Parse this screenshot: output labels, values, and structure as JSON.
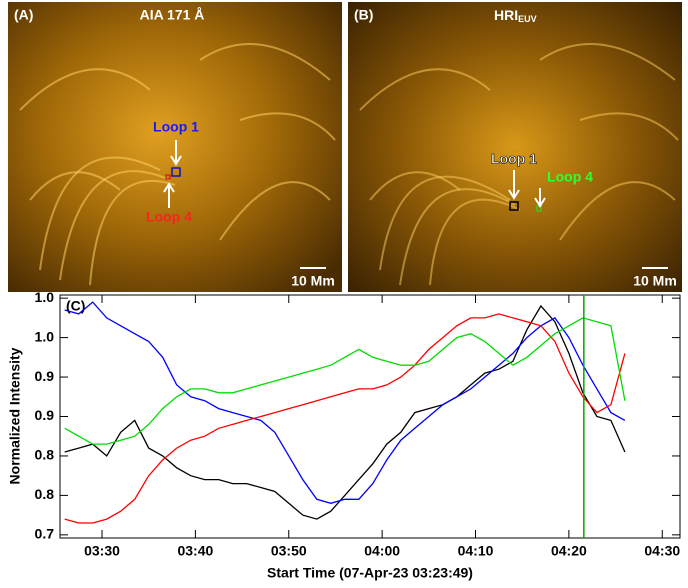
{
  "panels": [
    {
      "label": "(A)",
      "title": "AIA 171 Å",
      "loop_a": "Loop 1",
      "loop_b": "Loop 4",
      "scale": "10 Mm"
    },
    {
      "label": "(B)",
      "title": "HRI",
      "title_sub": "EUV",
      "loop_a": "Loop 1",
      "loop_b": "Loop 4",
      "scale": "10 Mm"
    }
  ],
  "chart_data": {
    "type": "line",
    "panel_label": "(C)",
    "xlabel": "Start Time (07-Apr-23 03:23:49)",
    "ylabel": "Normalized Intensity",
    "xlim": [
      25.5,
      91.9
    ],
    "ylim": [
      0.696,
      1.004
    ],
    "xticks": [
      {
        "value": 30,
        "label": "03:30"
      },
      {
        "value": 40,
        "label": "03:40"
      },
      {
        "value": 50,
        "label": "03:50"
      },
      {
        "value": 60,
        "label": "04:00"
      },
      {
        "value": 70,
        "label": "04:10"
      },
      {
        "value": 80,
        "label": "04:20"
      },
      {
        "value": 90,
        "label": "04:30"
      }
    ],
    "yticks": [
      0.7,
      {
        "value": 0.75,
        "label": "0.8"
      },
      0.8,
      {
        "value": 0.85,
        "label": "0.9"
      },
      0.9,
      {
        "value": 0.95,
        "label": "1.0"
      },
      {
        "value": 1,
        "label": "1.0"
      }
    ],
    "x": [
      26,
      27.5,
      29,
      30.5,
      32,
      33.5,
      35,
      36.5,
      38,
      39.5,
      41,
      42.5,
      44,
      45.5,
      47,
      48.5,
      50,
      51.5,
      53,
      54.5,
      56,
      57.5,
      59,
      60.5,
      62,
      63.5,
      65,
      66.5,
      68,
      69.5,
      71,
      72.5,
      74,
      75.5,
      77,
      78.5,
      80,
      81.5,
      83,
      84.5,
      86
    ],
    "series": [
      {
        "color": "#000000",
        "values": [
          0.805,
          0.81,
          0.815,
          0.8,
          0.83,
          0.845,
          0.81,
          0.8,
          0.785,
          0.775,
          0.77,
          0.77,
          0.765,
          0.765,
          0.76,
          0.755,
          0.74,
          0.725,
          0.72,
          0.73,
          0.75,
          0.77,
          0.79,
          0.815,
          0.83,
          0.855,
          0.86,
          0.865,
          0.875,
          0.89,
          0.905,
          0.91,
          0.92,
          0.96,
          0.99,
          0.97,
          0.93,
          0.88,
          0.85,
          0.845,
          0.805
        ]
      },
      {
        "color": "#0000ff",
        "values": [
          0.985,
          0.98,
          0.995,
          0.975,
          0.965,
          0.955,
          0.945,
          0.925,
          0.89,
          0.875,
          0.87,
          0.86,
          0.855,
          0.85,
          0.845,
          0.83,
          0.8,
          0.77,
          0.745,
          0.74,
          0.745,
          0.745,
          0.765,
          0.795,
          0.82,
          0.835,
          0.85,
          0.865,
          0.875,
          0.885,
          0.9,
          0.915,
          0.93,
          0.95,
          0.965,
          0.975,
          0.95,
          0.915,
          0.885,
          0.855,
          0.845
        ]
      },
      {
        "color": "#ff0000",
        "values": [
          0.72,
          0.715,
          0.715,
          0.72,
          0.73,
          0.745,
          0.775,
          0.795,
          0.81,
          0.82,
          0.825,
          0.835,
          0.84,
          0.845,
          0.85,
          0.855,
          0.86,
          0.865,
          0.87,
          0.875,
          0.88,
          0.885,
          0.885,
          0.89,
          0.9,
          0.915,
          0.935,
          0.95,
          0.965,
          0.975,
          0.975,
          0.98,
          0.975,
          0.97,
          0.965,
          0.945,
          0.905,
          0.875,
          0.855,
          0.865,
          0.93
        ]
      },
      {
        "color": "#00dd00",
        "values": [
          0.835,
          0.825,
          0.815,
          0.815,
          0.82,
          0.825,
          0.84,
          0.86,
          0.875,
          0.885,
          0.885,
          0.88,
          0.88,
          0.885,
          0.89,
          0.895,
          0.9,
          0.905,
          0.91,
          0.915,
          0.925,
          0.935,
          0.925,
          0.92,
          0.915,
          0.915,
          0.92,
          0.935,
          0.95,
          0.955,
          0.945,
          0.93,
          0.915,
          0.925,
          0.94,
          0.955,
          0.965,
          0.975,
          0.97,
          0.965,
          0.87
        ]
      }
    ],
    "marker_x": 81.6,
    "marker_color": "#00aa00"
  }
}
